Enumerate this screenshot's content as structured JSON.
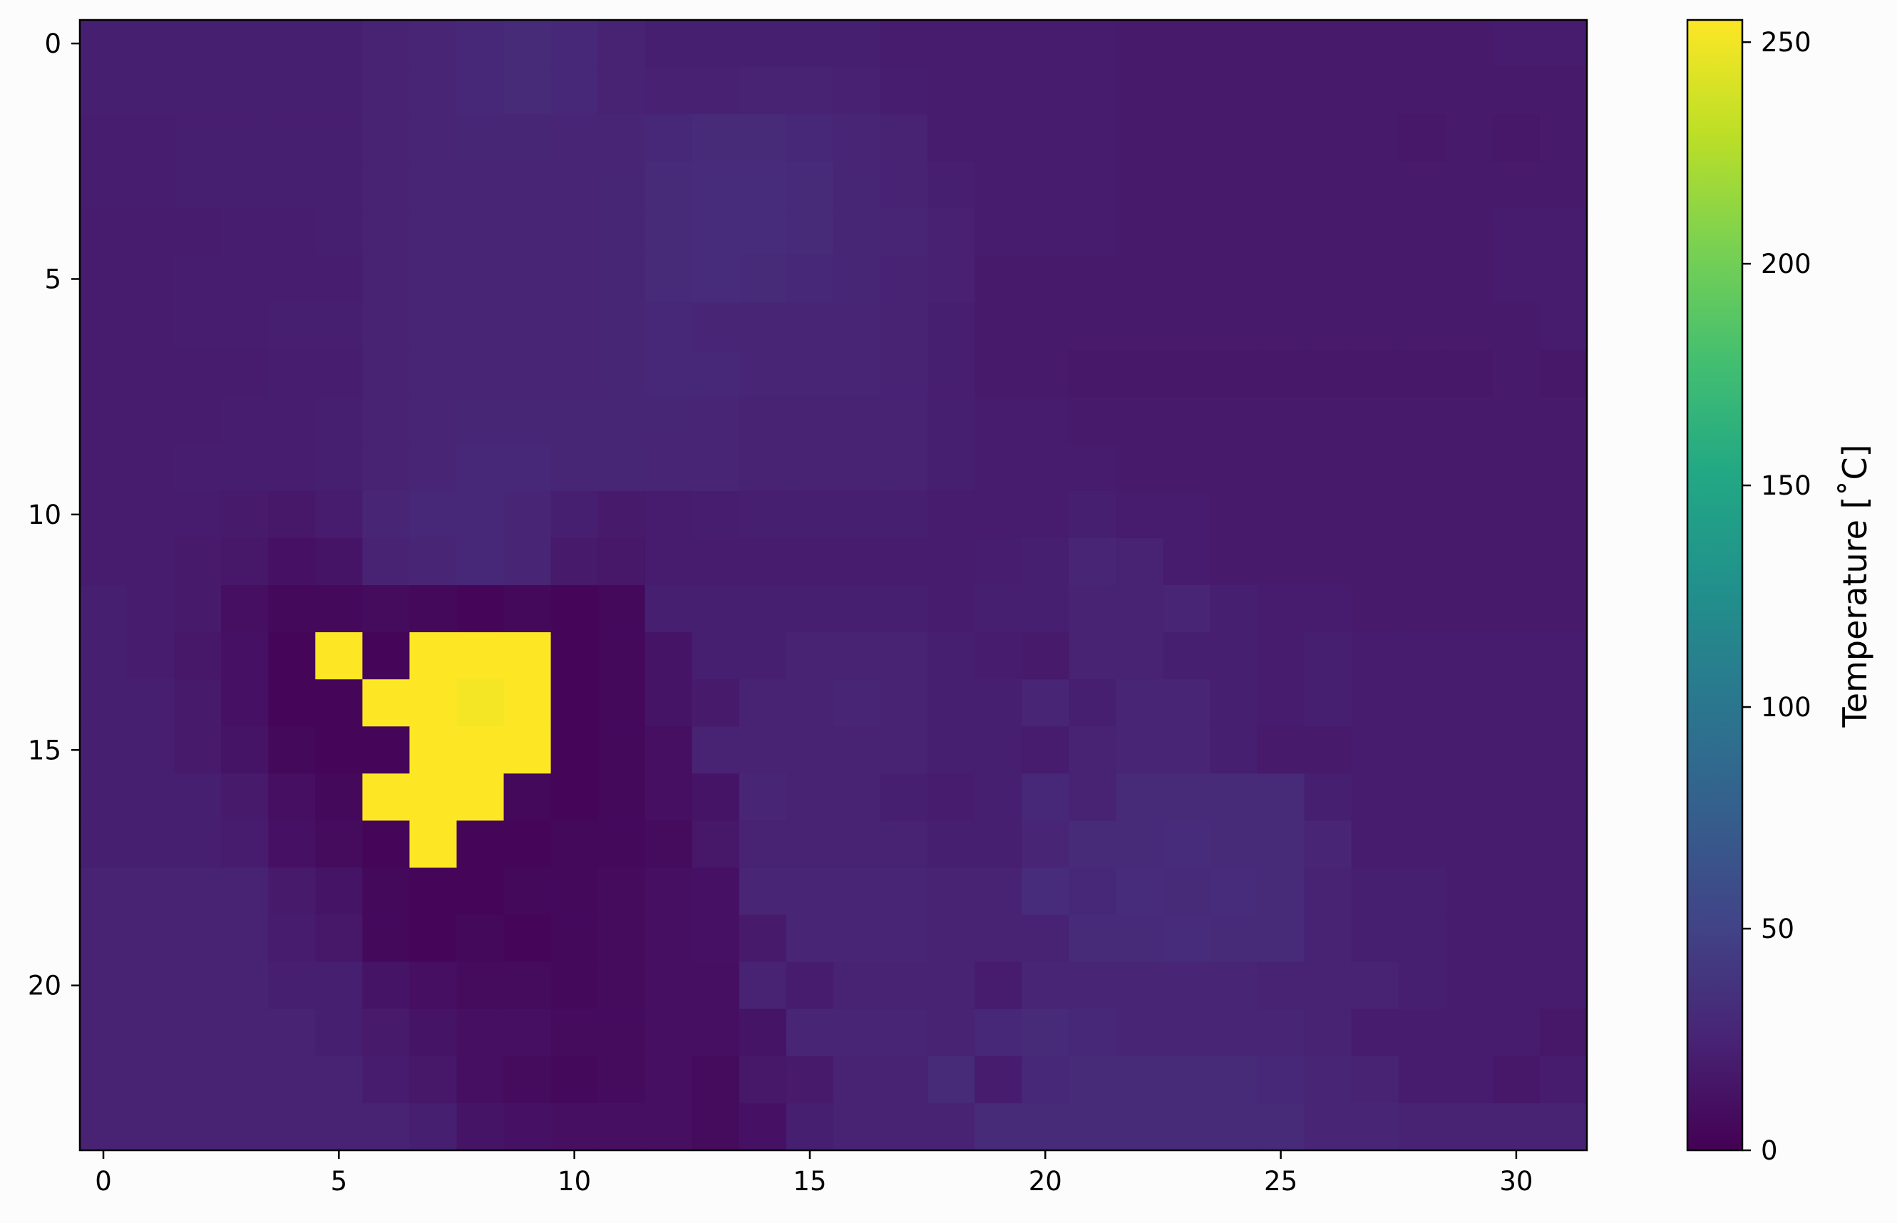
{
  "chart_data": {
    "type": "heatmap",
    "colormap": "viridis",
    "rows": 24,
    "cols": 32,
    "x_ticks": [
      0,
      5,
      10,
      15,
      20,
      25,
      30
    ],
    "x_tick_labels": [
      "0",
      "5",
      "10",
      "15",
      "20",
      "25",
      "30"
    ],
    "y_ticks": [
      0,
      5,
      10,
      15,
      20
    ],
    "y_tick_labels": [
      "0",
      "5",
      "10",
      "15",
      "20"
    ],
    "colorbar": {
      "label": "Temperature [$^{\\circ}$C]",
      "label_text": "Temperature [˚C]",
      "min": 0,
      "max": 255,
      "ticks": [
        0,
        50,
        100,
        150,
        200,
        250
      ],
      "tick_labels": [
        "0",
        "50",
        "100",
        "150",
        "200",
        "250"
      ]
    },
    "values": [
      [
        22,
        22,
        22,
        22,
        22,
        22,
        24,
        26,
        28,
        30,
        28,
        24,
        22,
        22,
        22,
        22,
        22,
        20,
        20,
        20,
        20,
        20,
        18,
        18,
        18,
        18,
        18,
        18,
        18,
        18,
        20,
        20
      ],
      [
        22,
        22,
        22,
        22,
        22,
        22,
        24,
        26,
        28,
        30,
        28,
        25,
        23,
        23,
        24,
        24,
        23,
        21,
        20,
        19,
        19,
        19,
        18,
        18,
        18,
        18,
        18,
        18,
        18,
        18,
        18,
        18
      ],
      [
        21,
        21,
        22,
        22,
        22,
        22,
        24,
        26,
        27,
        27,
        26,
        26,
        28,
        30,
        30,
        28,
        26,
        24,
        20,
        19,
        19,
        19,
        18,
        18,
        18,
        18,
        18,
        18,
        16,
        18,
        16,
        18
      ],
      [
        21,
        21,
        22,
        22,
        22,
        22,
        24,
        26,
        26,
        26,
        26,
        27,
        30,
        32,
        32,
        30,
        27,
        25,
        22,
        19,
        19,
        19,
        18,
        18,
        18,
        18,
        18,
        18,
        18,
        18,
        18,
        18
      ],
      [
        20,
        20,
        20,
        21,
        21,
        22,
        24,
        26,
        26,
        26,
        26,
        27,
        30,
        32,
        32,
        30,
        27,
        26,
        23,
        19,
        19,
        19,
        18,
        18,
        18,
        18,
        18,
        18,
        18,
        18,
        20,
        20
      ],
      [
        20,
        20,
        21,
        21,
        21,
        21,
        24,
        26,
        26,
        26,
        26,
        27,
        30,
        32,
        30,
        28,
        27,
        25,
        23,
        18,
        18,
        18,
        18,
        18,
        18,
        18,
        18,
        18,
        18,
        18,
        20,
        20
      ],
      [
        20,
        20,
        21,
        21,
        22,
        22,
        24,
        26,
        26,
        26,
        26,
        27,
        28,
        26,
        26,
        26,
        26,
        25,
        22,
        18,
        18,
        18,
        18,
        18,
        18,
        18,
        18,
        18,
        18,
        18,
        18,
        20
      ],
      [
        19,
        19,
        20,
        20,
        21,
        21,
        24,
        26,
        26,
        26,
        26,
        27,
        28,
        28,
        26,
        26,
        26,
        25,
        22,
        18,
        18,
        17,
        17,
        17,
        17,
        17,
        17,
        17,
        17,
        17,
        18,
        17
      ],
      [
        20,
        20,
        20,
        21,
        21,
        22,
        24,
        26,
        27,
        27,
        27,
        27,
        27,
        26,
        24,
        24,
        24,
        24,
        22,
        20,
        19,
        18,
        18,
        18,
        18,
        18,
        18,
        18,
        18,
        18,
        18,
        18
      ],
      [
        20,
        20,
        21,
        21,
        21,
        22,
        24,
        26,
        28,
        28,
        27,
        27,
        26,
        26,
        24,
        24,
        24,
        24,
        22,
        20,
        20,
        19,
        18,
        18,
        18,
        18,
        18,
        18,
        18,
        18,
        18,
        18
      ],
      [
        20,
        20,
        19,
        18,
        17,
        20,
        26,
        28,
        28,
        26,
        22,
        18,
        20,
        21,
        22,
        22,
        22,
        22,
        20,
        19,
        20,
        22,
        20,
        20,
        18,
        18,
        18,
        18,
        18,
        18,
        18,
        18
      ],
      [
        20,
        20,
        18,
        16,
        12,
        14,
        24,
        26,
        28,
        26,
        18,
        16,
        20,
        20,
        20,
        20,
        20,
        20,
        20,
        21,
        22,
        26,
        25,
        20,
        18,
        18,
        18,
        18,
        18,
        18,
        18,
        18
      ],
      [
        22,
        20,
        18,
        10,
        6,
        6,
        8,
        6,
        4,
        6,
        4,
        6,
        22,
        22,
        22,
        22,
        22,
        22,
        20,
        22,
        22,
        24,
        24,
        26,
        22,
        20,
        20,
        18,
        18,
        18,
        18,
        18
      ],
      [
        22,
        20,
        16,
        12,
        4,
        255,
        4,
        255,
        255,
        255,
        4,
        6,
        14,
        22,
        22,
        24,
        24,
        24,
        22,
        20,
        18,
        24,
        24,
        22,
        22,
        20,
        22,
        20,
        20,
        20,
        20,
        20
      ],
      [
        22,
        22,
        18,
        12,
        4,
        4,
        255,
        255,
        252,
        255,
        4,
        6,
        14,
        18,
        24,
        24,
        26,
        24,
        22,
        22,
        26,
        22,
        26,
        26,
        22,
        20,
        22,
        20,
        20,
        20,
        20,
        20
      ],
      [
        22,
        22,
        18,
        14,
        6,
        4,
        4,
        255,
        255,
        255,
        4,
        6,
        10,
        24,
        24,
        24,
        24,
        24,
        22,
        22,
        20,
        24,
        26,
        26,
        22,
        18,
        18,
        20,
        20,
        20,
        20,
        20
      ],
      [
        22,
        22,
        22,
        18,
        10,
        6,
        255,
        255,
        255,
        6,
        4,
        6,
        10,
        14,
        26,
        24,
        24,
        22,
        20,
        22,
        28,
        24,
        30,
        30,
        30,
        30,
        22,
        20,
        20,
        20,
        20,
        20
      ],
      [
        22,
        22,
        22,
        20,
        12,
        8,
        4,
        255,
        4,
        4,
        6,
        6,
        8,
        16,
        24,
        24,
        24,
        24,
        22,
        22,
        26,
        30,
        30,
        32,
        30,
        30,
        26,
        20,
        20,
        20,
        20,
        20
      ],
      [
        24,
        24,
        24,
        24,
        18,
        14,
        6,
        4,
        4,
        6,
        6,
        8,
        10,
        12,
        26,
        26,
        26,
        26,
        24,
        24,
        32,
        28,
        32,
        30,
        32,
        30,
        24,
        22,
        22,
        20,
        20,
        20
      ],
      [
        24,
        24,
        24,
        24,
        20,
        16,
        6,
        4,
        6,
        4,
        6,
        8,
        10,
        12,
        18,
        26,
        26,
        26,
        24,
        24,
        24,
        30,
        30,
        32,
        30,
        30,
        24,
        22,
        22,
        20,
        20,
        20
      ],
      [
        24,
        24,
        24,
        24,
        22,
        22,
        14,
        10,
        8,
        8,
        6,
        8,
        10,
        10,
        24,
        20,
        24,
        24,
        24,
        20,
        26,
        26,
        26,
        26,
        26,
        24,
        24,
        24,
        22,
        20,
        20,
        20
      ],
      [
        24,
        24,
        24,
        24,
        24,
        22,
        18,
        14,
        10,
        10,
        8,
        8,
        10,
        10,
        14,
        26,
        26,
        26,
        24,
        28,
        30,
        28,
        26,
        26,
        26,
        26,
        24,
        20,
        20,
        20,
        20,
        16
      ],
      [
        24,
        24,
        24,
        24,
        24,
        24,
        20,
        16,
        10,
        8,
        6,
        8,
        10,
        8,
        16,
        18,
        24,
        24,
        30,
        20,
        28,
        30,
        30,
        30,
        30,
        28,
        26,
        24,
        20,
        20,
        16,
        20
      ],
      [
        24,
        24,
        24,
        24,
        24,
        24,
        24,
        22,
        14,
        12,
        10,
        10,
        10,
        8,
        12,
        22,
        24,
        24,
        24,
        30,
        30,
        30,
        30,
        30,
        30,
        30,
        26,
        26,
        24,
        24,
        24,
        24
      ]
    ]
  }
}
